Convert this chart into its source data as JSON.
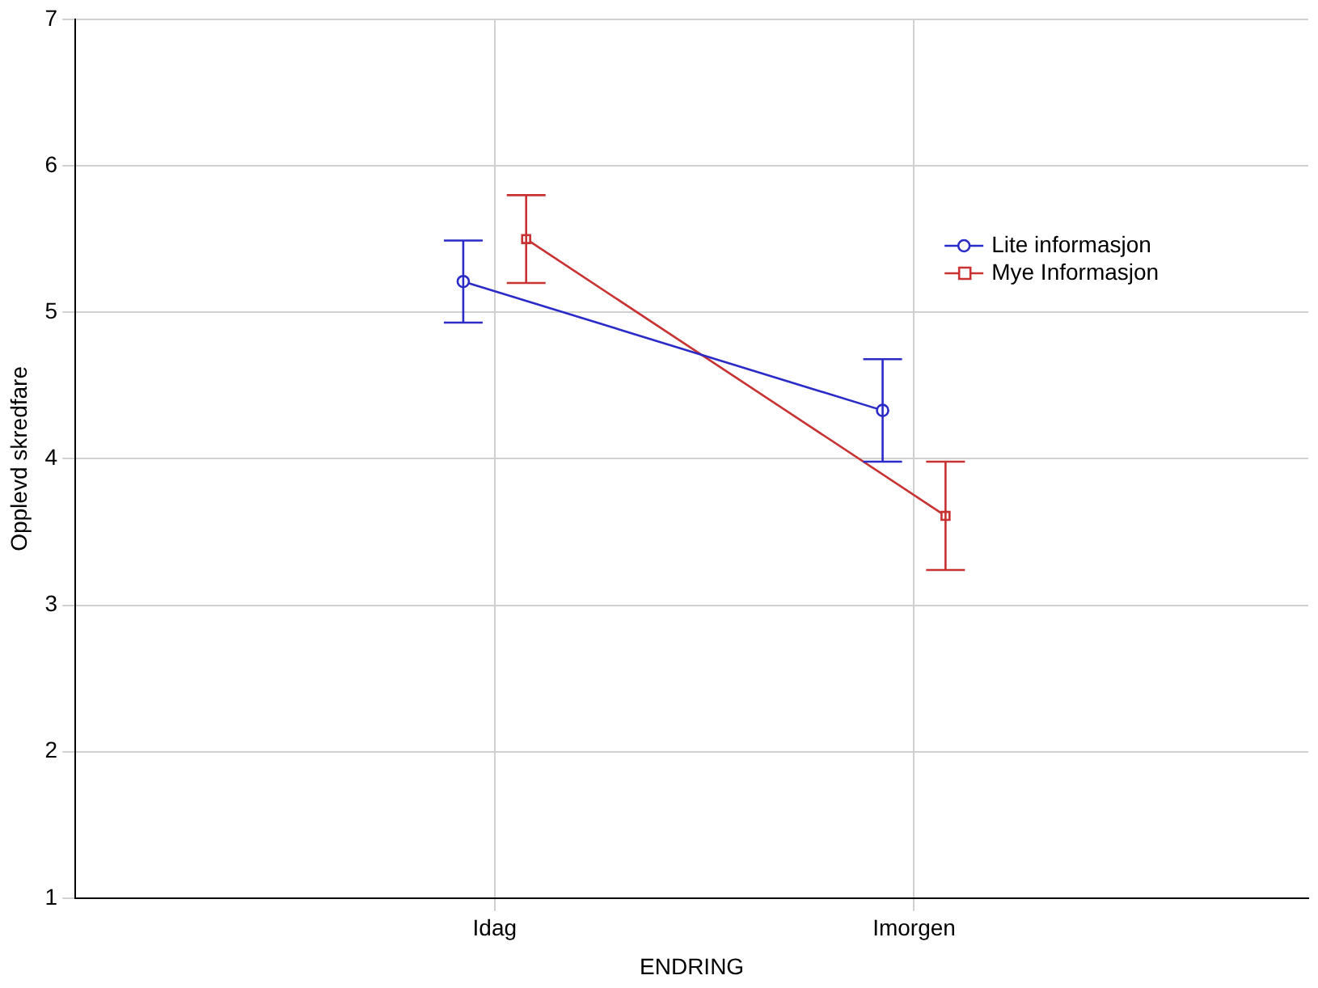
{
  "chart_data": {
    "type": "line",
    "xlabel": "ENDRING",
    "ylabel": "Opplevd skredfare",
    "categories": [
      "Idag",
      "Imorgen"
    ],
    "series": [
      {
        "name": "Lite informasjon",
        "color": "#2b2bc8",
        "marker": "circle",
        "values": [
          5.21,
          4.33
        ],
        "errors": [
          0.28,
          0.35
        ]
      },
      {
        "name": "Mye Informasjon",
        "color": "#c83232",
        "marker": "square",
        "values": [
          5.5,
          3.61
        ],
        "errors": [
          0.3,
          0.37
        ]
      }
    ],
    "ylim": [
      1,
      7
    ],
    "yticks": [
      1,
      2,
      3,
      4,
      5,
      6,
      7
    ],
    "grid": true,
    "legend": "top right"
  }
}
